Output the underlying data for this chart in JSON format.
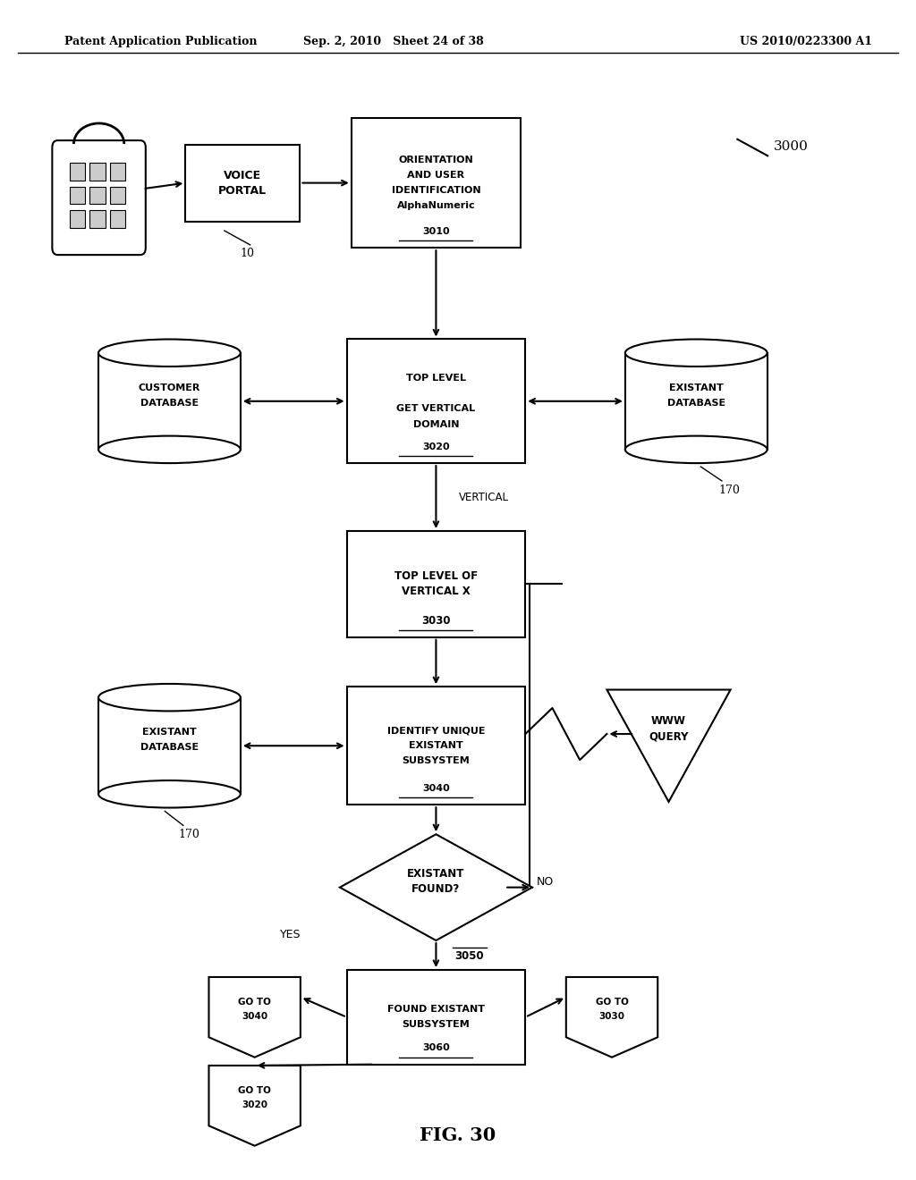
{
  "bg_color": "#ffffff",
  "header_left": "Patent Application Publication",
  "header_mid": "Sep. 2, 2010   Sheet 24 of 38",
  "header_right": "US 2010/0223300 A1",
  "fig_label": "FIG. 30",
  "diagram_number": "3000",
  "lw": 1.5
}
